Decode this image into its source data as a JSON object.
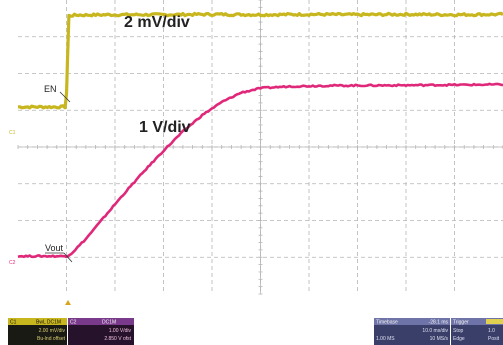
{
  "chart_data": {
    "type": "line",
    "title": "",
    "xlabel": "",
    "ylabel": "",
    "grid": true,
    "grid_divisions": {
      "x": 10,
      "y": 8
    },
    "x_range_div": [
      0,
      10
    ],
    "y_range_div": [
      0,
      8
    ],
    "annotations": {
      "ch1_scale": "2 mV/div",
      "ch2_scale": "1 V/div",
      "en_label": "EN",
      "vout_label": "Vout"
    },
    "series": [
      {
        "name": "EN",
        "color": "#c8b61e",
        "points": [
          [
            0.0,
            5.09
          ],
          [
            0.97,
            5.09
          ],
          [
            1.0,
            5.43
          ],
          [
            1.02,
            6.37
          ],
          [
            1.05,
            7.57
          ],
          [
            1.2,
            7.59
          ],
          [
            2,
            7.6
          ],
          [
            3,
            7.6
          ],
          [
            4,
            7.61
          ],
          [
            5,
            7.6
          ],
          [
            6,
            7.61
          ],
          [
            7,
            7.6
          ],
          [
            8,
            7.61
          ],
          [
            9,
            7.6
          ],
          [
            10,
            7.61
          ]
        ]
      },
      {
        "name": "Vout",
        "color": "#e0287a",
        "points": [
          [
            0.0,
            1.03
          ],
          [
            0.6,
            1.03
          ],
          [
            1.0,
            1.03
          ],
          [
            1.1,
            1.1
          ],
          [
            1.4,
            1.5
          ],
          [
            1.8,
            2.13
          ],
          [
            2.2,
            2.75
          ],
          [
            2.6,
            3.34
          ],
          [
            3.0,
            3.9
          ],
          [
            3.4,
            4.42
          ],
          [
            3.8,
            4.87
          ],
          [
            4.2,
            5.22
          ],
          [
            4.6,
            5.48
          ],
          [
            5.0,
            5.6
          ],
          [
            5.6,
            5.65
          ],
          [
            6.4,
            5.67
          ],
          [
            8.0,
            5.68
          ],
          [
            10.0,
            5.7
          ]
        ]
      }
    ]
  },
  "colors": {
    "grid": "#b5b5b5",
    "frame": "#9a9a9a",
    "ch1": "#c8b61e",
    "ch2": "#e0287a",
    "bottom_bar": "#d8d8d8"
  },
  "ch1_panel": {
    "header_label": "C1",
    "header_tag": "BwL DC1M",
    "line1": "2.00 mV/div",
    "line2": "Bu-lnd offset"
  },
  "ch2_panel": {
    "header_label": "C2",
    "header_tag": "DC1M",
    "line1": "1.00 V/div",
    "line2": "2.850 V ofst"
  },
  "timebase_panel": {
    "label": "Timebase",
    "value": "-28.1 ms",
    "line1": "10.0 ms/div",
    "line2_a": "1.00 MS",
    "line2_b": "10 MS/s"
  },
  "trigger_panel": {
    "label": "Trigger",
    "line1": "Stop",
    "line2": "Edge",
    "right1": "1.0",
    "right2": "Posit"
  },
  "icons": {
    "trigger_marker": "trigger-position-icon",
    "ch1_ground_marker": "channel1-marker-icon",
    "ch2_ground_marker": "channel2-marker-icon"
  }
}
